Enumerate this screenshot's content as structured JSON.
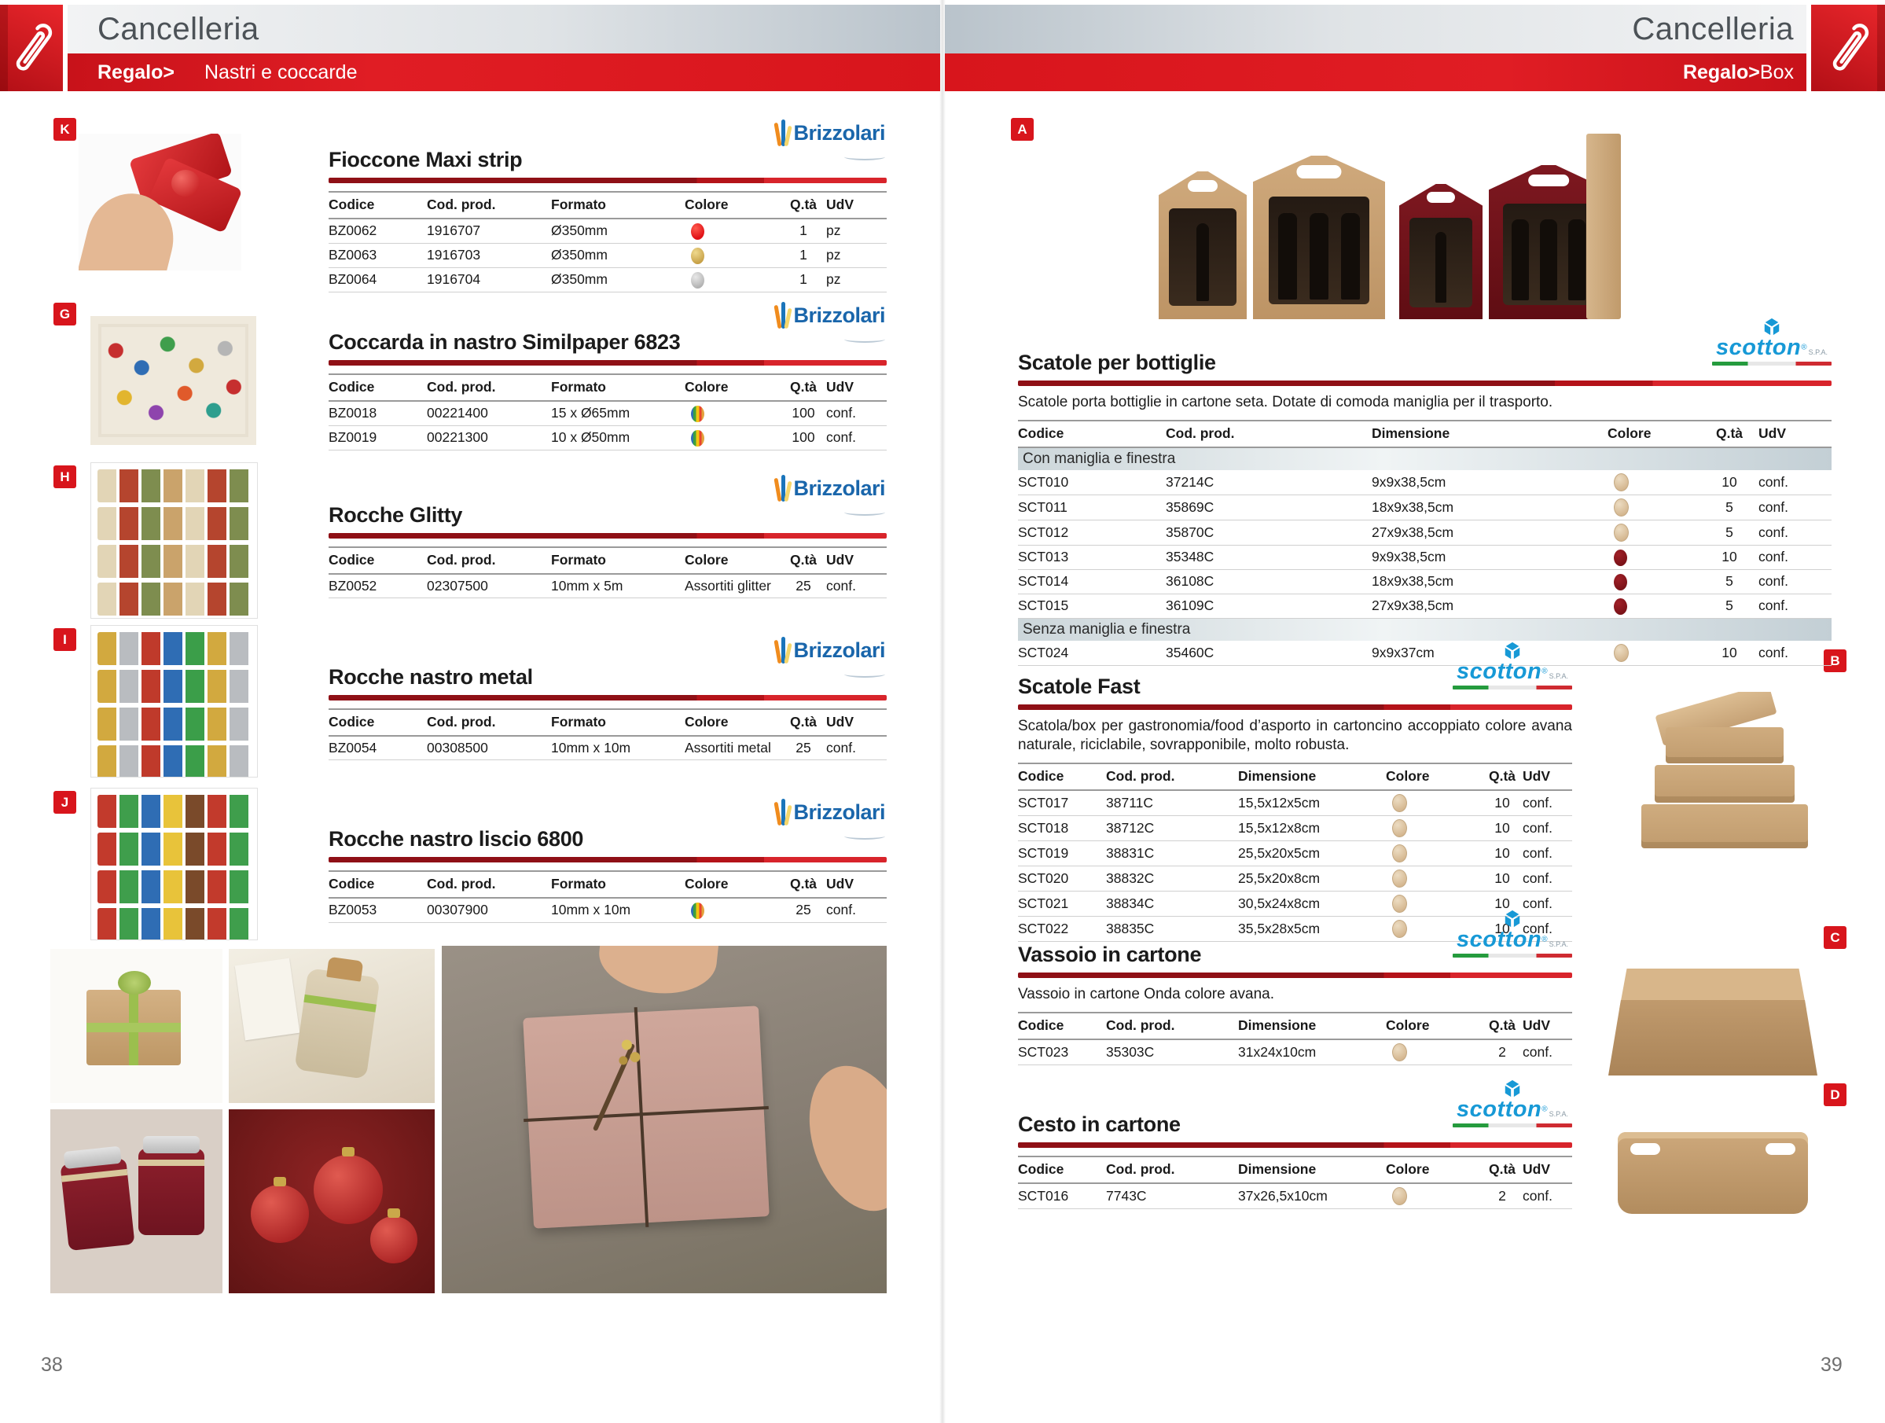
{
  "colors": {
    "accent_red": "#d8151c",
    "rule_dark_red": "#8f1016",
    "rule_bright_red": "#d8242b",
    "subheader_band_gray_blue": "#ccd6da",
    "swatch_red": "#e8191c",
    "swatch_gold": "#c99b3f",
    "swatch_silver": "#b5b5b5",
    "swatch_beige": "#dcc5a6",
    "swatch_bordeaux": "#7c1016",
    "swatch_multicolor": [
      "#2f6fb5",
      "#3fa23c",
      "#f3c512",
      "#e8432e",
      "#e2a23b"
    ],
    "brizzolari_blue": "#1a66ab",
    "scotton_blue": "#1799d6",
    "title_gray": "#4c5257"
  },
  "brands": {
    "brizzolari": "Brizzolari",
    "scotton": "scotton",
    "scotton_reg": "®",
    "scotton_spa": "S.P.A."
  },
  "left_page": {
    "header": {
      "title": "Cancelleria",
      "category": "Regalo>",
      "subcategory": "Nastri e coccarde"
    },
    "page_number": "38",
    "columns": [
      "Codice",
      "Cod. prod.",
      "Formato",
      "Colore",
      "Q.tà",
      "UdV"
    ],
    "badges": [
      "K",
      "G",
      "H",
      "I",
      "J"
    ],
    "sections": [
      {
        "title": "Fioccone Maxi strip",
        "brand": "Brizzolari",
        "rows": [
          {
            "codice": "BZ0062",
            "cod_prod": "1916707",
            "formato": "Ø350mm",
            "colore": {
              "type": "dot",
              "color": "red"
            },
            "qta": "1",
            "udv": "pz"
          },
          {
            "codice": "BZ0063",
            "cod_prod": "1916703",
            "formato": "Ø350mm",
            "colore": {
              "type": "dot",
              "color": "gold"
            },
            "qta": "1",
            "udv": "pz"
          },
          {
            "codice": "BZ0064",
            "cod_prod": "1916704",
            "formato": "Ø350mm",
            "colore": {
              "type": "dot",
              "color": "silver"
            },
            "qta": "1",
            "udv": "pz"
          }
        ]
      },
      {
        "title": "Coccarda in nastro Similpaper 6823",
        "brand": "Brizzolari",
        "rows": [
          {
            "codice": "BZ0018",
            "cod_prod": "00221400",
            "formato": "15 x Ø65mm",
            "colore": {
              "type": "dot",
              "color": "multi"
            },
            "qta": "100",
            "udv": "conf."
          },
          {
            "codice": "BZ0019",
            "cod_prod": "00221300",
            "formato": "10 x Ø50mm",
            "colore": {
              "type": "dot",
              "color": "multi"
            },
            "qta": "100",
            "udv": "conf."
          }
        ]
      },
      {
        "title": "Rocche Glitty",
        "brand": "Brizzolari",
        "rows": [
          {
            "codice": "BZ0052",
            "cod_prod": "02307500",
            "formato": "10mm x 5m",
            "colore": {
              "type": "text",
              "label": "Assortiti glitter"
            },
            "qta": "25",
            "udv": "conf."
          }
        ]
      },
      {
        "title": "Rocche nastro metal",
        "brand": "Brizzolari",
        "rows": [
          {
            "codice": "BZ0054",
            "cod_prod": "00308500",
            "formato": "10mm x 10m",
            "colore": {
              "type": "text",
              "label": "Assortiti metal"
            },
            "qta": "25",
            "udv": "conf."
          }
        ]
      },
      {
        "title": "Rocche nastro liscio 6800",
        "brand": "Brizzolari",
        "rows": [
          {
            "codice": "BZ0053",
            "cod_prod": "00307900",
            "formato": "10mm x 10m",
            "colore": {
              "type": "dot",
              "color": "multi"
            },
            "qta": "25",
            "udv": "conf."
          }
        ]
      }
    ]
  },
  "right_page": {
    "header": {
      "title": "Cancelleria",
      "category": "Regalo>",
      "subcategory": "Box"
    },
    "page_number": "39",
    "columns": [
      "Codice",
      "Cod. prod.",
      "Dimensione",
      "Colore",
      "Q.tà",
      "UdV"
    ],
    "badges": [
      "A",
      "B",
      "C",
      "D"
    ],
    "sections": [
      {
        "title": "Scatole per bottiglie",
        "brand": "scotton",
        "description": "Scatole porta bottiglie in cartone seta. Dotate di comoda maniglia per il trasporto.",
        "rows": [
          {
            "subheader": "Con maniglia e finestra"
          },
          {
            "codice": "SCT010",
            "cod_prod": "37214C",
            "dimensione": "9x9x38,5cm",
            "colore": {
              "type": "dot",
              "color": "beige"
            },
            "qta": "10",
            "udv": "conf."
          },
          {
            "codice": "SCT011",
            "cod_prod": "35869C",
            "dimensione": "18x9x38,5cm",
            "colore": {
              "type": "dot",
              "color": "beige"
            },
            "qta": "5",
            "udv": "conf."
          },
          {
            "codice": "SCT012",
            "cod_prod": "35870C",
            "dimensione": "27x9x38,5cm",
            "colore": {
              "type": "dot",
              "color": "beige"
            },
            "qta": "5",
            "udv": "conf."
          },
          {
            "codice": "SCT013",
            "cod_prod": "35348C",
            "dimensione": "9x9x38,5cm",
            "colore": {
              "type": "dot",
              "color": "bordeaux"
            },
            "qta": "10",
            "udv": "conf."
          },
          {
            "codice": "SCT014",
            "cod_prod": "36108C",
            "dimensione": "18x9x38,5cm",
            "colore": {
              "type": "dot",
              "color": "bordeaux"
            },
            "qta": "5",
            "udv": "conf."
          },
          {
            "codice": "SCT015",
            "cod_prod": "36109C",
            "dimensione": "27x9x38,5cm",
            "colore": {
              "type": "dot",
              "color": "bordeaux"
            },
            "qta": "5",
            "udv": "conf."
          },
          {
            "subheader": "Senza maniglia e finestra"
          },
          {
            "codice": "SCT024",
            "cod_prod": "35460C",
            "dimensione": "9x9x37cm",
            "colore": {
              "type": "dot",
              "color": "beige"
            },
            "qta": "10",
            "udv": "conf."
          }
        ]
      },
      {
        "title": "Scatole Fast",
        "brand": "scotton",
        "description": "Scatola/box per gastronomia/food d’asporto in cartoncino accoppiato colore avana naturale, riciclabile, sovrapponibile, molto robusta.",
        "rows": [
          {
            "codice": "SCT017",
            "cod_prod": "38711C",
            "dimensione": "15,5x12x5cm",
            "colore": {
              "type": "dot",
              "color": "beige"
            },
            "qta": "10",
            "udv": "conf."
          },
          {
            "codice": "SCT018",
            "cod_prod": "38712C",
            "dimensione": "15,5x12x8cm",
            "colore": {
              "type": "dot",
              "color": "beige"
            },
            "qta": "10",
            "udv": "conf."
          },
          {
            "codice": "SCT019",
            "cod_prod": "38831C",
            "dimensione": "25,5x20x5cm",
            "colore": {
              "type": "dot",
              "color": "beige"
            },
            "qta": "10",
            "udv": "conf."
          },
          {
            "codice": "SCT020",
            "cod_prod": "38832C",
            "dimensione": "25,5x20x8cm",
            "colore": {
              "type": "dot",
              "color": "beige"
            },
            "qta": "10",
            "udv": "conf."
          },
          {
            "codice": "SCT021",
            "cod_prod": "38834C",
            "dimensione": "30,5x24x8cm",
            "colore": {
              "type": "dot",
              "color": "beige"
            },
            "qta": "10",
            "udv": "conf."
          },
          {
            "codice": "SCT022",
            "cod_prod": "38835C",
            "dimensione": "35,5x28x5cm",
            "colore": {
              "type": "dot",
              "color": "beige"
            },
            "qta": "10",
            "udv": "conf."
          }
        ]
      },
      {
        "title": "Vassoio in cartone",
        "brand": "scotton",
        "description": "Vassoio in cartone Onda colore avana.",
        "rows": [
          {
            "codice": "SCT023",
            "cod_prod": "35303C",
            "dimensione": "31x24x10cm",
            "colore": {
              "type": "dot",
              "color": "beige"
            },
            "qta": "2",
            "udv": "conf."
          }
        ]
      },
      {
        "title": "Cesto in cartone",
        "brand": "scotton",
        "rows": [
          {
            "codice": "SCT016",
            "cod_prod": "7743C",
            "dimensione": "37x26,5x10cm",
            "colore": {
              "type": "dot",
              "color": "beige"
            },
            "qta": "2",
            "udv": "conf."
          }
        ]
      }
    ]
  }
}
